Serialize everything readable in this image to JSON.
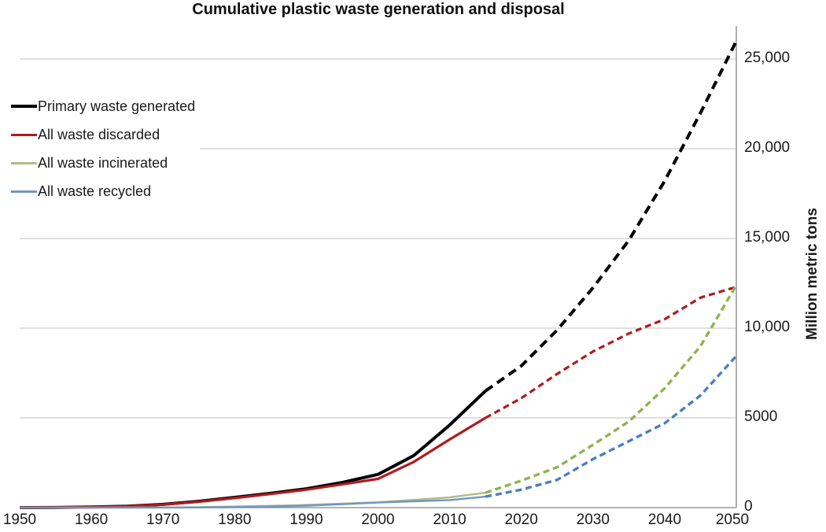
{
  "chart_data": {
    "type": "line",
    "title": "Cumulative plastic waste generation and disposal",
    "ylabel": "Million metric tons",
    "xlabel": "",
    "xlim": [
      1950,
      2050
    ],
    "ylim": [
      0,
      26800
    ],
    "grid": "horizontal",
    "grid_color": "#c0c0c0",
    "axis_color": "#9a9a9a",
    "legend_position": "top-left-inside",
    "projection_start_year": 2015,
    "x": [
      1950,
      1955,
      1960,
      1965,
      1970,
      1975,
      1980,
      1985,
      1990,
      1995,
      2000,
      2005,
      2010,
      2015,
      2020,
      2025,
      2030,
      2035,
      2040,
      2045,
      2050
    ],
    "series": [
      {
        "name": "Primary waste generated",
        "solid_color": "#000000",
        "dash_color": "#000000",
        "solid_width": 4,
        "dash_width": 4,
        "dash_pattern": "11 7",
        "swatch_height": 4,
        "values": [
          1,
          5,
          30,
          80,
          180,
          350,
          570,
          800,
          1050,
          1400,
          1850,
          2900,
          4600,
          6500,
          7900,
          9900,
          12250,
          14900,
          18200,
          22000,
          26000
        ]
      },
      {
        "name": "All waste discarded",
        "solid_color": "#b01b1e",
        "dash_color": "#b01b1e",
        "solid_width": 3.2,
        "dash_width": 3.2,
        "dash_pattern": "8 5",
        "swatch_height": 3,
        "values": [
          1,
          5,
          28,
          75,
          170,
          330,
          530,
          760,
          1000,
          1300,
          1600,
          2550,
          3800,
          5000,
          6100,
          7450,
          8700,
          9700,
          10500,
          11700,
          12300
        ]
      },
      {
        "name": "All waste incinerated",
        "solid_color": "#b3bb8b",
        "dash_color": "#8fb44e",
        "solid_width": 2.4,
        "dash_width": 3.4,
        "dash_pattern": "8 5",
        "swatch_height": 3,
        "values": [
          0,
          0,
          2,
          5,
          10,
          25,
          60,
          100,
          150,
          220,
          300,
          430,
          570,
          830,
          1500,
          2250,
          3500,
          4800,
          6650,
          9000,
          12400
        ]
      },
      {
        "name": "All waste recycled",
        "solid_color": "#6f96c4",
        "dash_color": "#4a80bd",
        "solid_width": 2.4,
        "dash_width": 3.4,
        "dash_pattern": "8 5",
        "swatch_height": 3,
        "values": [
          0,
          0,
          0,
          1,
          4,
          10,
          25,
          55,
          110,
          190,
          280,
          350,
          420,
          610,
          1000,
          1550,
          2700,
          3700,
          4700,
          6250,
          8450
        ]
      }
    ],
    "x_ticks": [
      {
        "value": 1950,
        "label": "1950"
      },
      {
        "value": 1960,
        "label": "1960"
      },
      {
        "value": 1970,
        "label": "1970"
      },
      {
        "value": 1980,
        "label": "1980"
      },
      {
        "value": 1990,
        "label": "1990"
      },
      {
        "value": 2000,
        "label": "2000"
      },
      {
        "value": 2010,
        "label": "2010"
      },
      {
        "value": 2020,
        "label": "2020"
      },
      {
        "value": 2030,
        "label": "2030"
      },
      {
        "value": 2040,
        "label": "2040"
      },
      {
        "value": 2050,
        "label": "2050"
      }
    ],
    "y_ticks": [
      {
        "value": 0,
        "label": "0"
      },
      {
        "value": 5000,
        "label": "5000"
      },
      {
        "value": 10000,
        "label": "10,000"
      },
      {
        "value": 15000,
        "label": "15,000"
      },
      {
        "value": 20000,
        "label": "20,000"
      },
      {
        "value": 25000,
        "label": "25,000"
      }
    ]
  }
}
